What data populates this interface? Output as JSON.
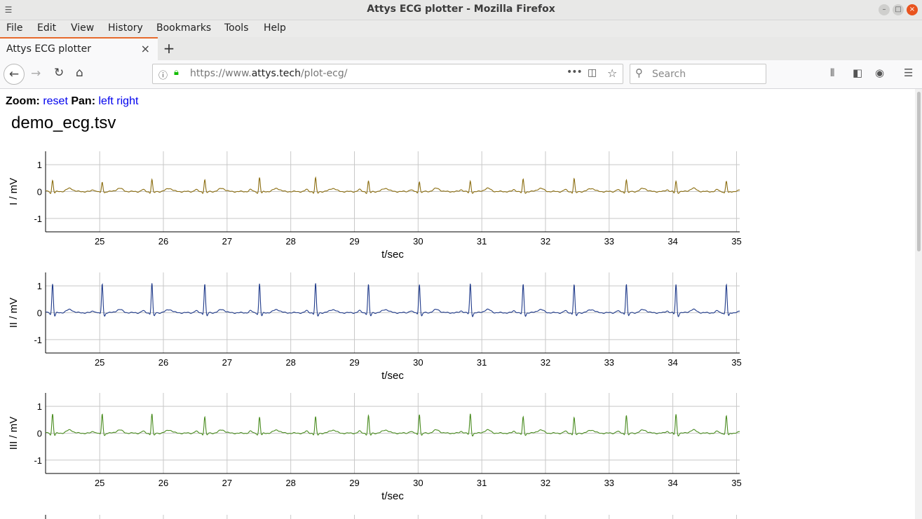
{
  "window": {
    "title": "Attys ECG plotter - Mozilla Firefox"
  },
  "menu": [
    "File",
    "Edit",
    "View",
    "History",
    "Bookmarks",
    "Tools",
    "Help"
  ],
  "tab": {
    "label": "Attys ECG plotter",
    "close": "×"
  },
  "newtab": "+",
  "url": {
    "prefix": "https://www.",
    "host": "attys.tech",
    "path": "/plot-ecg/"
  },
  "search": {
    "placeholder": "Search"
  },
  "controls": {
    "zoom_label": "Zoom:",
    "reset": "reset",
    "pan_label": "Pan:",
    "left": "left",
    "right": "right"
  },
  "filename": "demo_ecg.tsv",
  "chart_data": [
    {
      "type": "line",
      "ylabel": "I / mV",
      "xlabel": "t/sec",
      "color": "#8b6d10",
      "xlim": [
        24.15,
        35.05
      ],
      "ylim": [
        -1.5,
        1.5
      ],
      "xticks": [
        25,
        26,
        27,
        28,
        29,
        30,
        31,
        32,
        33,
        34,
        35
      ],
      "yticks": [
        1,
        0,
        -1
      ],
      "grid": true,
      "beats_t": [
        24.26,
        25.04,
        25.82,
        26.65,
        27.51,
        28.39,
        29.22,
        30.02,
        30.82,
        31.65,
        32.45,
        33.27,
        34.05,
        34.84
      ],
      "r_peak_mv": [
        0.42,
        0.35,
        0.45,
        0.45,
        0.52,
        0.5,
        0.38,
        0.38,
        0.38,
        0.45,
        0.48,
        0.45,
        0.38,
        0.38
      ]
    },
    {
      "type": "line",
      "ylabel": "II / mV",
      "xlabel": "t/sec",
      "color": "#1f3a8a",
      "xlim": [
        24.15,
        35.05
      ],
      "ylim": [
        -1.5,
        1.5
      ],
      "xticks": [
        25,
        26,
        27,
        28,
        29,
        30,
        31,
        32,
        33,
        34,
        35
      ],
      "yticks": [
        1,
        0,
        -1
      ],
      "grid": true,
      "beats_t": [
        24.26,
        25.04,
        25.82,
        26.65,
        27.51,
        28.39,
        29.22,
        30.02,
        30.82,
        31.65,
        32.45,
        33.27,
        34.05,
        34.84
      ],
      "r_peak_mv": [
        1.08,
        1.08,
        1.1,
        1.08,
        1.08,
        1.08,
        1.05,
        1.08,
        1.08,
        1.05,
        1.05,
        1.08,
        1.05,
        1.05
      ]
    },
    {
      "type": "line",
      "ylabel": "III / mV",
      "xlabel": "t/sec",
      "color": "#4a8c20",
      "xlim": [
        24.15,
        35.05
      ],
      "ylim": [
        -1.5,
        1.5
      ],
      "xticks": [
        25,
        26,
        27,
        28,
        29,
        30,
        31,
        32,
        33,
        34,
        35
      ],
      "yticks": [
        1,
        0,
        -1
      ],
      "grid": true,
      "beats_t": [
        24.26,
        25.04,
        25.82,
        26.65,
        27.51,
        28.39,
        29.22,
        30.02,
        30.82,
        31.65,
        32.45,
        33.27,
        34.05,
        34.84
      ],
      "r_peak_mv": [
        0.72,
        0.72,
        0.72,
        0.62,
        0.6,
        0.6,
        0.65,
        0.72,
        0.72,
        0.6,
        0.58,
        0.68,
        0.7,
        0.65
      ]
    }
  ]
}
